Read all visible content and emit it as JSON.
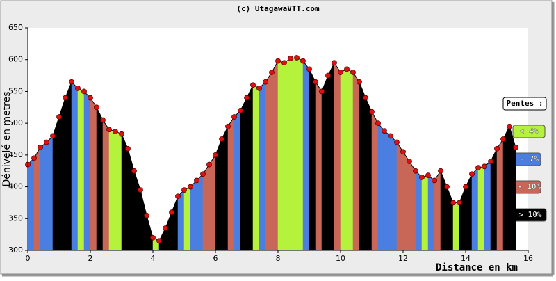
{
  "chart_data": {
    "type": "elevation-profile",
    "title": "(c) UtagawaVTT.com",
    "y_label": "Dénivelé en metres",
    "x_label": "Distance en km",
    "legend_title": "Pentes :",
    "legend_position": "right",
    "classes": [
      {
        "name": "< 4%",
        "color": "#b4f23c"
      },
      {
        "name": "4 - 7%",
        "color": "#4a7ee0"
      },
      {
        "name": "7 - 10%",
        "color": "#c86658"
      },
      {
        "name": "> 10%",
        "color": "#000000"
      }
    ],
    "point_color": "#e01010",
    "x": [
      0,
      0.2,
      0.4,
      0.6,
      0.8,
      1,
      1.2,
      1.4,
      1.6,
      1.8,
      2,
      2.2,
      2.4,
      2.6,
      2.8,
      3,
      3.2,
      3.4,
      3.6,
      3.8,
      4,
      4.2,
      4.4,
      4.6,
      4.8,
      5,
      5.2,
      5.4,
      5.6,
      5.8,
      6,
      6.2,
      6.4,
      6.6,
      6.8,
      7,
      7.2,
      7.4,
      7.6,
      7.8,
      8,
      8.2,
      8.4,
      8.6,
      8.8,
      9,
      9.2,
      9.4,
      9.6,
      9.8,
      10,
      10.2,
      10.4,
      10.6,
      10.8,
      11,
      11.2,
      11.4,
      11.6,
      11.8,
      12,
      12.2,
      12.4,
      12.6,
      12.8,
      13,
      13.2,
      13.4,
      13.6,
      13.8,
      14,
      14.2,
      14.4,
      14.6,
      14.8,
      15,
      15.2,
      15.4,
      15.6
    ],
    "values": [
      435,
      445,
      462,
      470,
      480,
      510,
      540,
      565,
      555,
      550,
      540,
      525,
      505,
      490,
      487,
      483,
      460,
      425,
      395,
      355,
      320,
      315,
      335,
      360,
      385,
      395,
      400,
      410,
      420,
      435,
      450,
      475,
      495,
      510,
      520,
      540,
      560,
      555,
      565,
      580,
      598,
      595,
      602,
      603,
      598,
      585,
      565,
      550,
      575,
      595,
      580,
      585,
      580,
      565,
      540,
      518,
      500,
      488,
      480,
      470,
      455,
      440,
      425,
      415,
      418,
      410,
      425,
      400,
      375,
      375,
      400,
      420,
      430,
      432,
      440,
      460,
      475,
      495,
      462
    ],
    "segment_classes": [
      1,
      2,
      1,
      1,
      3,
      3,
      3,
      1,
      0,
      1,
      2,
      3,
      2,
      0,
      0,
      3,
      3,
      3,
      3,
      3,
      0,
      3,
      3,
      3,
      1,
      0,
      1,
      1,
      2,
      2,
      3,
      3,
      2,
      1,
      3,
      3,
      0,
      1,
      2,
      2,
      0,
      0,
      0,
      0,
      1,
      3,
      2,
      3,
      3,
      2,
      0,
      0,
      2,
      3,
      3,
      2,
      1,
      1,
      1,
      2,
      2,
      2,
      1,
      0,
      1,
      2,
      3,
      3,
      0,
      3,
      3,
      1,
      0,
      1,
      3,
      2,
      3,
      3
    ],
    "xlim": [
      0,
      16
    ],
    "xticks": [
      0,
      2,
      4,
      6,
      8,
      10,
      12,
      14,
      16
    ],
    "ylim": [
      300,
      650
    ],
    "yticks": [
      300,
      350,
      400,
      450,
      500,
      550,
      600,
      650
    ]
  }
}
